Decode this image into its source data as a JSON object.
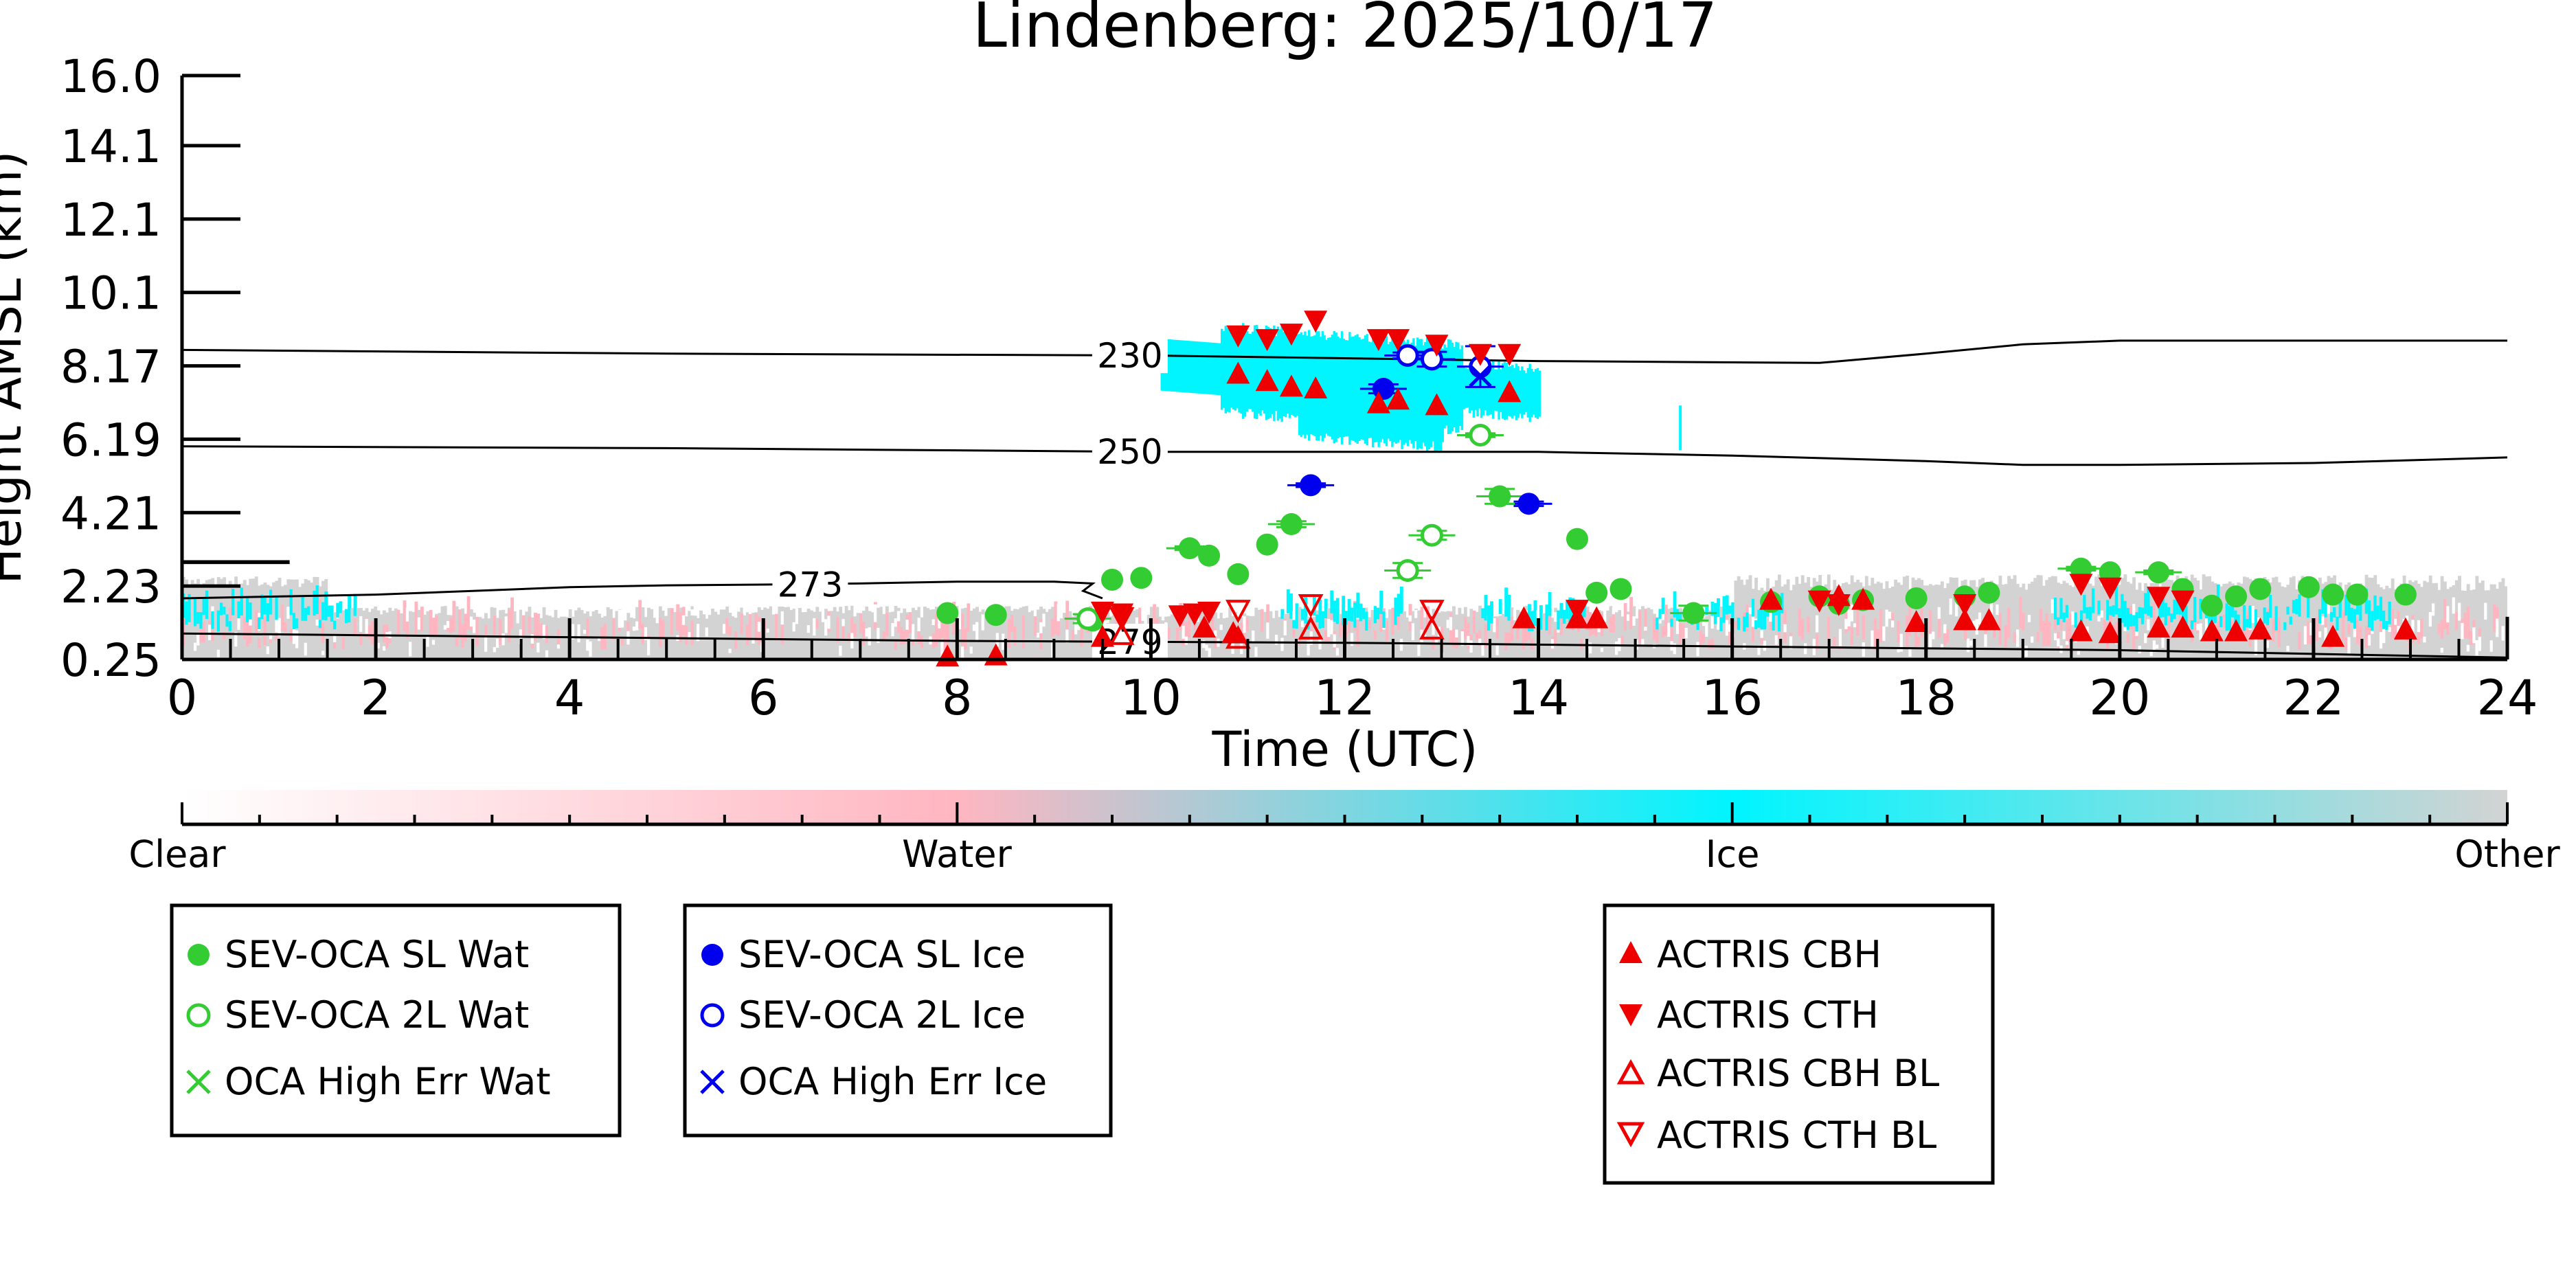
{
  "chart_data": {
    "type": "scatter",
    "title": "Lindenberg: 2025/10/17",
    "xlabel": "Time (UTC)",
    "ylabel": "Height AMSL (km)",
    "xlim": [
      0,
      24
    ],
    "ylim": [
      0.25,
      16.0
    ],
    "x_ticks": [
      "0",
      "2",
      "4",
      "6",
      "8",
      "10",
      "12",
      "14",
      "16",
      "18",
      "20",
      "22",
      "24"
    ],
    "y_ticks": [
      "0.25",
      "2.23",
      "4.21",
      "6.19",
      "8.17",
      "10.1",
      "12.1",
      "14.1",
      "16.0"
    ],
    "y_tick_values": [
      0.25,
      2.23,
      4.21,
      6.19,
      8.17,
      10.15,
      12.13,
      14.11,
      16.0
    ],
    "colorbar": {
      "labels": [
        "Clear",
        "Water",
        "Ice",
        "Other"
      ],
      "colors": {
        "clear": "#ffffff",
        "water": "#ffb6c1",
        "ice": "#00f5ff",
        "other": "#d3d3d3"
      }
    },
    "isotherms": [
      {
        "label": "230",
        "points": [
          [
            0,
            8.6
          ],
          [
            5,
            8.5
          ],
          [
            10,
            8.45
          ],
          [
            14,
            8.3
          ],
          [
            16.9,
            8.25
          ],
          [
            18,
            8.5
          ],
          [
            19,
            8.75
          ],
          [
            20,
            8.85
          ],
          [
            24,
            8.85
          ]
        ],
        "label_at": 9.5
      },
      {
        "label": "250",
        "points": [
          [
            0,
            6.0
          ],
          [
            5,
            5.95
          ],
          [
            10,
            5.85
          ],
          [
            14,
            5.85
          ],
          [
            16,
            5.75
          ],
          [
            18,
            5.6
          ],
          [
            19,
            5.5
          ],
          [
            20,
            5.5
          ],
          [
            22,
            5.55
          ],
          [
            24,
            5.7
          ]
        ],
        "label_at": 9.5
      },
      {
        "label": "273",
        "points": [
          [
            0,
            1.9
          ],
          [
            2,
            2.0
          ],
          [
            3,
            2.1
          ],
          [
            4,
            2.2
          ],
          [
            5,
            2.25
          ],
          [
            6,
            2.27
          ],
          [
            7,
            2.3
          ],
          [
            8,
            2.35
          ],
          [
            9,
            2.35
          ],
          [
            9.4,
            2.3
          ],
          [
            9.3,
            2.1
          ],
          [
            9.5,
            1.9
          ]
        ],
        "label_at": 6.2
      },
      {
        "label": "279",
        "points": [
          [
            0,
            0.95
          ],
          [
            4,
            0.85
          ],
          [
            8,
            0.75
          ],
          [
            12,
            0.7
          ],
          [
            16,
            0.6
          ],
          [
            20,
            0.5
          ],
          [
            24,
            0.3
          ]
        ],
        "label_at": 9.5
      }
    ],
    "stepped_line": [
      [
        0,
        2.9
      ],
      [
        1.1,
        2.9
      ],
      [
        1.1,
        2.85
      ],
      [
        0,
        2.85
      ]
    ],
    "series": [
      {
        "name": "SEV-OCA SL Wat",
        "marker": "filled-circle",
        "color": "#33cc33",
        "points": [
          [
            7.9,
            1.5
          ],
          [
            8.4,
            1.45
          ],
          [
            9.4,
            1.3
          ],
          [
            9.6,
            2.4
          ],
          [
            9.9,
            2.45
          ],
          [
            10.4,
            3.25
          ],
          [
            10.6,
            3.05
          ],
          [
            10.9,
            2.55
          ],
          [
            11.2,
            3.35
          ],
          [
            11.45,
            3.9
          ],
          [
            13.6,
            4.65
          ],
          [
            14.4,
            3.5
          ],
          [
            14.6,
            2.05
          ],
          [
            14.85,
            2.15
          ],
          [
            15.6,
            1.5
          ],
          [
            16.4,
            1.8
          ],
          [
            16.9,
            1.95
          ],
          [
            17.1,
            1.75
          ],
          [
            17.35,
            1.85
          ],
          [
            17.9,
            1.9
          ],
          [
            18.4,
            1.95
          ],
          [
            18.65,
            2.05
          ],
          [
            19.6,
            2.7
          ],
          [
            19.9,
            2.6
          ],
          [
            20.4,
            2.6
          ],
          [
            20.65,
            2.15
          ],
          [
            20.95,
            1.7
          ],
          [
            21.2,
            1.95
          ],
          [
            21.45,
            2.15
          ],
          [
            21.95,
            2.2
          ],
          [
            22.2,
            2.0
          ],
          [
            22.45,
            2.0
          ],
          [
            22.95,
            2.0
          ]
        ]
      },
      {
        "name": "SEV-OCA 2L Wat",
        "marker": "open-circle",
        "color": "#33cc33",
        "points": [
          [
            9.35,
            1.35
          ],
          [
            12.65,
            2.65
          ],
          [
            12.9,
            3.6
          ],
          [
            13.4,
            6.3
          ]
        ]
      },
      {
        "name": "OCA High Err Wat",
        "marker": "x",
        "color": "#33cc33",
        "points": []
      },
      {
        "name": "SEV-OCA SL Ice",
        "marker": "filled-circle",
        "color": "#0000ee",
        "points": [
          [
            11.65,
            4.95
          ],
          [
            12.4,
            7.55
          ],
          [
            13.9,
            4.45
          ]
        ]
      },
      {
        "name": "SEV-OCA 2L Ice",
        "marker": "open-circle",
        "color": "#0000ee",
        "points": [
          [
            12.65,
            8.45
          ],
          [
            12.9,
            8.35
          ],
          [
            13.4,
            8.15
          ]
        ]
      },
      {
        "name": "OCA High Err Ice",
        "marker": "x",
        "color": "#0000ee",
        "points": [
          [
            13.4,
            7.9
          ]
        ]
      },
      {
        "name": "ACTRIS CBH",
        "marker": "triangle-up",
        "color": "#ee0000",
        "points": [
          [
            7.9,
            0.32
          ],
          [
            8.4,
            0.35
          ],
          [
            9.5,
            0.85
          ],
          [
            10.55,
            1.1
          ],
          [
            10.85,
            0.95
          ],
          [
            10.9,
            7.95
          ],
          [
            11.2,
            7.75
          ],
          [
            11.45,
            7.6
          ],
          [
            11.7,
            7.55
          ],
          [
            12.35,
            7.15
          ],
          [
            12.55,
            7.25
          ],
          [
            12.95,
            7.1
          ],
          [
            13.7,
            7.45
          ],
          [
            13.85,
            1.35
          ],
          [
            14.4,
            1.35
          ],
          [
            14.6,
            1.35
          ],
          [
            16.4,
            1.85
          ],
          [
            17.1,
            1.95
          ],
          [
            17.35,
            1.85
          ],
          [
            17.9,
            1.25
          ],
          [
            18.4,
            1.3
          ],
          [
            18.65,
            1.3
          ],
          [
            19.6,
            1.0
          ],
          [
            19.9,
            0.95
          ],
          [
            20.4,
            1.1
          ],
          [
            20.65,
            1.1
          ],
          [
            20.95,
            1.0
          ],
          [
            21.2,
            1.0
          ],
          [
            21.45,
            1.05
          ],
          [
            22.2,
            0.85
          ],
          [
            22.95,
            1.05
          ]
        ]
      },
      {
        "name": "ACTRIS CTH",
        "marker": "triangle-down",
        "color": "#ee0000",
        "points": [
          [
            9.5,
            1.55
          ],
          [
            9.7,
            1.5
          ],
          [
            10.3,
            1.45
          ],
          [
            10.45,
            1.5
          ],
          [
            10.6,
            1.55
          ],
          [
            10.9,
            9.0
          ],
          [
            11.2,
            8.9
          ],
          [
            11.45,
            9.05
          ],
          [
            11.7,
            9.4
          ],
          [
            12.35,
            8.9
          ],
          [
            12.55,
            8.9
          ],
          [
            12.95,
            8.75
          ],
          [
            13.4,
            8.5
          ],
          [
            13.7,
            8.5
          ],
          [
            14.4,
            1.6
          ],
          [
            16.9,
            1.85
          ],
          [
            17.1,
            1.75
          ],
          [
            18.4,
            1.75
          ],
          [
            19.6,
            2.3
          ],
          [
            19.9,
            2.2
          ],
          [
            20.4,
            1.95
          ],
          [
            20.65,
            1.85
          ]
        ]
      },
      {
        "name": "ACTRIS CBH BL",
        "marker": "open-triangle-up",
        "color": "#ee0000",
        "points": [
          [
            9.7,
            0.9
          ],
          [
            10.9,
            0.8
          ],
          [
            11.65,
            1.05
          ],
          [
            12.9,
            1.05
          ]
        ]
      },
      {
        "name": "ACTRIS CTH BL",
        "marker": "open-triangle-down",
        "color": "#ee0000",
        "points": [
          [
            9.7,
            1.4
          ],
          [
            10.9,
            1.6
          ],
          [
            11.65,
            1.75
          ],
          [
            12.9,
            1.6
          ]
        ]
      }
    ],
    "error_bars": [
      [
        9.35,
        1.35,
        0.12
      ],
      [
        12.65,
        2.65,
        0.2
      ],
      [
        12.9,
        3.6,
        0.12
      ],
      [
        13.4,
        6.3,
        0.05
      ],
      [
        11.65,
        4.95,
        0.05
      ],
      [
        12.4,
        7.55,
        0.12
      ],
      [
        13.9,
        4.45,
        0.06
      ],
      [
        13.6,
        4.65,
        0.2
      ],
      [
        12.65,
        8.45,
        0.08
      ],
      [
        12.9,
        8.35,
        0.2
      ],
      [
        13.4,
        8.15,
        0.55
      ],
      [
        15.6,
        1.5,
        0.2
      ],
      [
        10.4,
        3.25,
        0.05
      ],
      [
        11.45,
        3.9,
        0.08
      ],
      [
        19.6,
        2.7,
        0.05
      ],
      [
        20.4,
        2.6,
        0.05
      ]
    ],
    "legends": [
      {
        "entries": [
          "SEV-OCA SL Wat",
          "SEV-OCA 2L Wat",
          "OCA High Err Wat"
        ]
      },
      {
        "entries": [
          "SEV-OCA SL Ice",
          "SEV-OCA 2L Ice",
          "OCA High Err Ice"
        ]
      },
      {
        "entries": [
          "ACTRIS CBH",
          "ACTRIS CTH",
          "ACTRIS CBH BL",
          "ACTRIS CTH BL"
        ]
      }
    ],
    "grid": false
  }
}
